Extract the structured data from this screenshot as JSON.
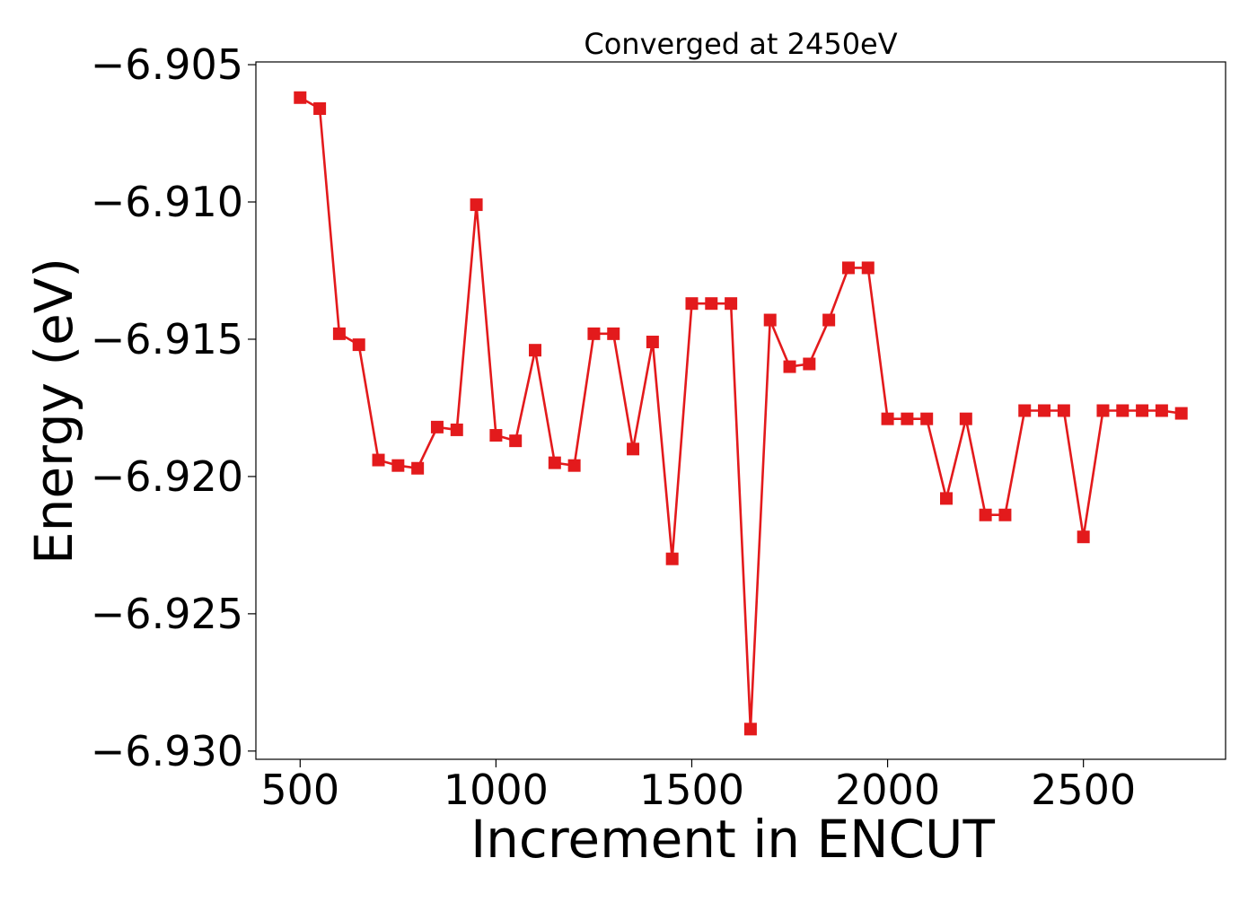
{
  "chart_data": {
    "type": "line",
    "title": "Converged at 2450eV",
    "xlabel": "Increment in ENCUT",
    "ylabel": "Energy (eV)",
    "xlim": [
      387,
      2863
    ],
    "ylim": [
      -6.9303,
      -6.9049
    ],
    "xticks": [
      500,
      1000,
      1500,
      2000,
      2500
    ],
    "xtick_labels": [
      "500",
      "1000",
      "1500",
      "2000",
      "2500"
    ],
    "yticks": [
      -6.905,
      -6.91,
      -6.915,
      -6.92,
      -6.925,
      -6.93
    ],
    "ytick_labels": [
      "−6.905",
      "−6.910",
      "−6.915",
      "−6.920",
      "−6.925",
      "−6.930"
    ],
    "grid": false,
    "legend": false,
    "series": [
      {
        "color": "#e31a1c",
        "marker": "square",
        "x": [
          500,
          550,
          600,
          650,
          700,
          750,
          800,
          850,
          900,
          950,
          1000,
          1050,
          1100,
          1150,
          1200,
          1250,
          1300,
          1350,
          1400,
          1450,
          1500,
          1550,
          1600,
          1650,
          1700,
          1750,
          1800,
          1850,
          1900,
          1950,
          2000,
          2050,
          2100,
          2150,
          2200,
          2250,
          2300,
          2350,
          2400,
          2450,
          2500,
          2550,
          2600,
          2650,
          2700,
          2750
        ],
        "y": [
          -6.9062,
          -6.9066,
          -6.9148,
          -6.9152,
          -6.9194,
          -6.9196,
          -6.9197,
          -6.9182,
          -6.9183,
          -6.9101,
          -6.9185,
          -6.9187,
          -6.9154,
          -6.9195,
          -6.9196,
          -6.9148,
          -6.9148,
          -6.919,
          -6.9151,
          -6.923,
          -6.9137,
          -6.9137,
          -6.9137,
          -6.9292,
          -6.9143,
          -6.916,
          -6.9159,
          -6.9143,
          -6.9124,
          -6.9124,
          -6.9179,
          -6.9179,
          -6.9179,
          -6.9208,
          -6.9179,
          -6.9214,
          -6.9214,
          -6.9176,
          -6.9176,
          -6.9176,
          -6.9222,
          -6.9176,
          -6.9176,
          -6.9176,
          -6.9176,
          -6.9177
        ]
      }
    ]
  }
}
